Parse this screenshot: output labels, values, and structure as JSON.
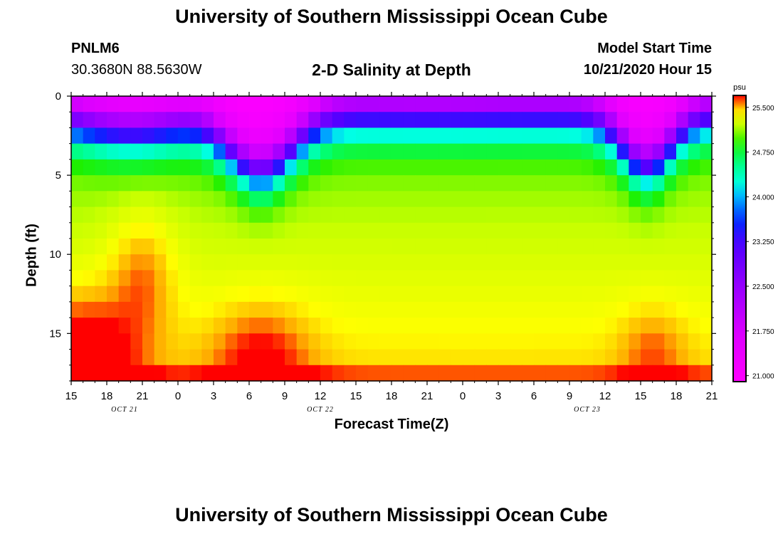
{
  "header": {
    "title_top": "University of Southern Mississippi Ocean Cube",
    "title_bottom": "University of Southern Mississippi Ocean Cube",
    "station_id": "PNLM6",
    "station_coords": "30.3680N 88.5630W",
    "model_label": "Model Start Time",
    "model_time": "10/21/2020 Hour 15"
  },
  "colorbar": {
    "unit": "psu",
    "ticks": [
      "21.000",
      "21.750",
      "22.500",
      "23.250",
      "24.000",
      "24.750",
      "25.500"
    ],
    "range": [
      20.9,
      25.7
    ]
  },
  "chart_data": {
    "type": "heatmap",
    "title": "2-D Salinity at Depth",
    "xlabel": "Forecast Time(Z)",
    "ylabel": "Depth (ft)",
    "x_tick_labels": [
      "15",
      "18",
      "21",
      "0",
      "3",
      "6",
      "9",
      "12",
      "15",
      "18",
      "21",
      "0",
      "3",
      "6",
      "9",
      "12",
      "15",
      "18",
      "21"
    ],
    "x_hours_range": [
      0,
      54
    ],
    "date_labels": [
      {
        "text": "OCT 21",
        "hour": 4.5
      },
      {
        "text": "OCT 22",
        "hour": 21
      },
      {
        "text": "OCT 23",
        "hour": 43.5
      }
    ],
    "y_ticks": [
      0,
      5,
      10,
      15
    ],
    "ylim": [
      0,
      18
    ],
    "z_unit": "psu",
    "z_range": [
      20.9,
      25.7
    ],
    "note": "Salinity lowest (~21 psu) near surface, highest (~25.7 psu) near 18 ft; fresher water reaches deeper around hours 13-19 and 46-50."
  }
}
